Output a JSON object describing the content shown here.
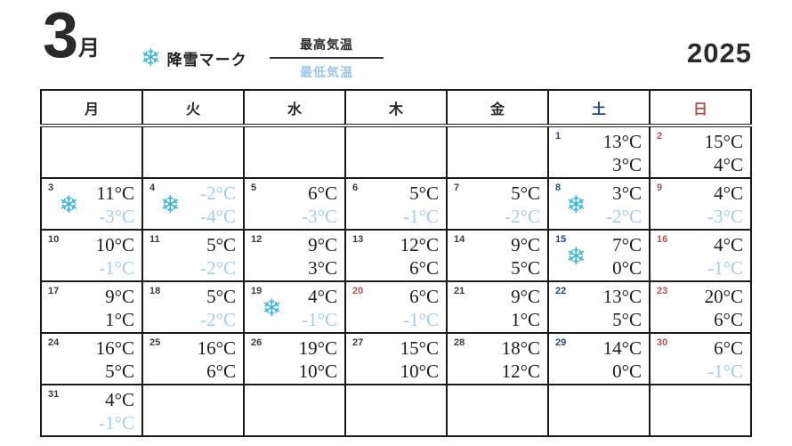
{
  "header": {
    "month_number": "3",
    "month_suffix": "月",
    "year": "2025",
    "legend": {
      "snow_label": "降雪マーク",
      "high_label": "最高気温",
      "low_label": "最低気温"
    }
  },
  "icons": {
    "snowflake": "❄"
  },
  "colors": {
    "saturday_text": "#24477c",
    "sunday_holiday_text": "#b05353",
    "negative_temp_text": "#a8cce6",
    "snowflake": "#35b5dd",
    "grid_line": "#1a1a1a"
  },
  "weekdays": [
    {
      "label": "月",
      "type": "weekday"
    },
    {
      "label": "火",
      "type": "weekday"
    },
    {
      "label": "水",
      "type": "weekday"
    },
    {
      "label": "木",
      "type": "weekday"
    },
    {
      "label": "金",
      "type": "weekday"
    },
    {
      "label": "土",
      "type": "saturday"
    },
    {
      "label": "日",
      "type": "sunday"
    }
  ],
  "weeks": [
    [
      null,
      null,
      null,
      null,
      null,
      {
        "day": "1",
        "number_color": "blue",
        "snow": false,
        "high": "13°C",
        "low": "3°C"
      },
      {
        "day": "2",
        "number_color": "red",
        "snow": false,
        "high": "15°C",
        "low": "4°C"
      }
    ],
    [
      {
        "day": "3",
        "number_color": "black",
        "snow": true,
        "high": "11°C",
        "low": "-3°C"
      },
      {
        "day": "4",
        "number_color": "black",
        "snow": true,
        "high": "-2°C",
        "low": "-4°C"
      },
      {
        "day": "5",
        "number_color": "black",
        "snow": false,
        "high": "6°C",
        "low": "-3°C"
      },
      {
        "day": "6",
        "number_color": "black",
        "snow": false,
        "high": "5°C",
        "low": "-1°C"
      },
      {
        "day": "7",
        "number_color": "black",
        "snow": false,
        "high": "5°C",
        "low": "-2°C"
      },
      {
        "day": "8",
        "number_color": "blue",
        "snow": true,
        "high": "3°C",
        "low": "-2°C"
      },
      {
        "day": "9",
        "number_color": "red",
        "snow": false,
        "high": "4°C",
        "low": "-3°C"
      }
    ],
    [
      {
        "day": "10",
        "number_color": "black",
        "snow": false,
        "high": "10°C",
        "low": "-1°C"
      },
      {
        "day": "11",
        "number_color": "black",
        "snow": false,
        "high": "5°C",
        "low": "-2°C"
      },
      {
        "day": "12",
        "number_color": "black",
        "snow": false,
        "high": "9°C",
        "low": "3°C"
      },
      {
        "day": "13",
        "number_color": "black",
        "snow": false,
        "high": "12°C",
        "low": "6°C"
      },
      {
        "day": "14",
        "number_color": "black",
        "snow": false,
        "high": "9°C",
        "low": "5°C"
      },
      {
        "day": "15",
        "number_color": "blue",
        "snow": true,
        "high": "7°C",
        "low": "0°C"
      },
      {
        "day": "16",
        "number_color": "red",
        "snow": false,
        "high": "4°C",
        "low": "-1°C"
      }
    ],
    [
      {
        "day": "17",
        "number_color": "black",
        "snow": false,
        "high": "9°C",
        "low": "1°C"
      },
      {
        "day": "18",
        "number_color": "black",
        "snow": false,
        "high": "5°C",
        "low": "-2°C"
      },
      {
        "day": "19",
        "number_color": "black",
        "snow": true,
        "high": "4°C",
        "low": "-1°C"
      },
      {
        "day": "20",
        "number_color": "red",
        "snow": false,
        "high": "6°C",
        "low": "-1°C"
      },
      {
        "day": "21",
        "number_color": "black",
        "snow": false,
        "high": "9°C",
        "low": "1°C"
      },
      {
        "day": "22",
        "number_color": "blue",
        "snow": false,
        "high": "13°C",
        "low": "5°C"
      },
      {
        "day": "23",
        "number_color": "red",
        "snow": false,
        "high": "20°C",
        "low": "6°C"
      }
    ],
    [
      {
        "day": "24",
        "number_color": "black",
        "snow": false,
        "high": "16°C",
        "low": "5°C"
      },
      {
        "day": "25",
        "number_color": "black",
        "snow": false,
        "high": "16°C",
        "low": "6°C"
      },
      {
        "day": "26",
        "number_color": "black",
        "snow": false,
        "high": "19°C",
        "low": "10°C"
      },
      {
        "day": "27",
        "number_color": "black",
        "snow": false,
        "high": "15°C",
        "low": "10°C"
      },
      {
        "day": "28",
        "number_color": "black",
        "snow": false,
        "high": "18°C",
        "low": "12°C"
      },
      {
        "day": "29",
        "number_color": "blue",
        "snow": false,
        "high": "14°C",
        "low": "0°C"
      },
      {
        "day": "30",
        "number_color": "red",
        "snow": false,
        "high": "6°C",
        "low": "-1°C"
      }
    ],
    [
      {
        "day": "31",
        "number_color": "black",
        "snow": false,
        "high": "4°C",
        "low": "-1°C"
      },
      null,
      null,
      null,
      null,
      null,
      null
    ]
  ]
}
